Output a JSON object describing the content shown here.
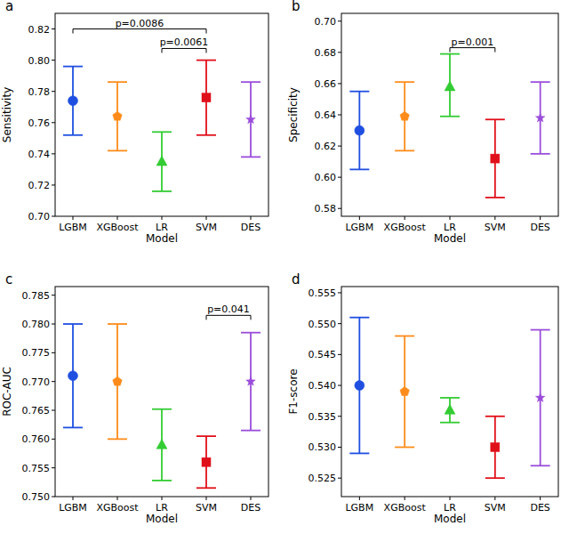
{
  "chart_data": [
    {
      "type": "errorbar",
      "panel": "a",
      "x_label": "Model",
      "y_label": "Sensitivity",
      "categories": [
        "LGBM",
        "XGBoost",
        "LR",
        "SVM",
        "DES"
      ],
      "values": [
        0.774,
        0.764,
        0.735,
        0.776,
        0.762
      ],
      "ci_lower": [
        0.752,
        0.742,
        0.716,
        0.752,
        0.738
      ],
      "ci_upper": [
        0.796,
        0.786,
        0.754,
        0.8,
        0.786
      ],
      "colors": [
        "#1f4fe0",
        "#ff8c1a",
        "#33cc33",
        "#e0101a",
        "#9a4ddb"
      ],
      "markers": [
        "circle",
        "pentagon",
        "triangle",
        "square",
        "star"
      ],
      "ylim": [
        0.7,
        0.83
      ],
      "yticks": [
        {
          "value": 0.7,
          "label": "0.70"
        },
        0.72,
        0.74,
        0.76,
        0.78,
        {
          "value": 0.8,
          "label": "0.80"
        },
        0.82
      ],
      "annotations": [
        {
          "text": "p=0.0086",
          "from": 0,
          "to": 3,
          "y": 0.82
        },
        {
          "text": "p=0.0061",
          "from": 2,
          "to": 3,
          "y": 0.8075
        }
      ]
    },
    {
      "type": "errorbar",
      "panel": "b",
      "x_label": "Model",
      "y_label": "Specificity",
      "categories": [
        "LGBM",
        "XGBoost",
        "LR",
        "SVM",
        "DES"
      ],
      "values": [
        0.63,
        0.639,
        0.658,
        0.612,
        0.638
      ],
      "ci_lower": [
        0.605,
        0.617,
        0.639,
        0.587,
        0.615
      ],
      "ci_upper": [
        0.655,
        0.661,
        0.679,
        0.637,
        0.661
      ],
      "colors": [
        "#1f4fe0",
        "#ff8c1a",
        "#33cc33",
        "#e0101a",
        "#9a4ddb"
      ],
      "markers": [
        "circle",
        "pentagon",
        "triangle",
        "square",
        "star"
      ],
      "ylim": [
        0.575,
        0.705
      ],
      "yticks": [
        0.58,
        {
          "value": 0.6,
          "label": "0.60"
        },
        0.62,
        0.64,
        0.66,
        0.68,
        {
          "value": 0.7,
          "label": "0.70"
        }
      ],
      "annotations": [
        {
          "text": "p=0.001",
          "from": 2,
          "to": 3,
          "y": 0.683
        }
      ]
    },
    {
      "type": "errorbar",
      "panel": "c",
      "x_label": "Model",
      "y_label": "ROC-AUC",
      "categories": [
        "LGBM",
        "XGBoost",
        "LR",
        "SVM",
        "DES"
      ],
      "values": [
        0.771,
        0.77,
        0.759,
        0.756,
        0.77
      ],
      "ci_lower": [
        0.762,
        0.76,
        0.7528,
        0.7515,
        0.7615
      ],
      "ci_upper": [
        0.78,
        0.78,
        0.7652,
        0.7605,
        0.7785
      ],
      "colors": [
        "#1f4fe0",
        "#ff8c1a",
        "#33cc33",
        "#e0101a",
        "#9a4ddb"
      ],
      "markers": [
        "circle",
        "pentagon",
        "triangle",
        "square",
        "star"
      ],
      "ylim": [
        0.75,
        0.7865
      ],
      "yticks": [
        {
          "value": 0.75,
          "label": "0.750"
        },
        0.755,
        {
          "value": 0.76,
          "label": "0.760"
        },
        0.765,
        {
          "value": 0.77,
          "label": "0.770"
        },
        0.775,
        {
          "value": 0.78,
          "label": "0.780"
        },
        0.785
      ],
      "annotations": [
        {
          "text": "p=0.041",
          "from": 3,
          "to": 4,
          "y": 0.7815
        }
      ]
    },
    {
      "type": "errorbar",
      "panel": "d",
      "x_label": "Model",
      "y_label": "F1-score",
      "categories": [
        "LGBM",
        "XGBoost",
        "LR",
        "SVM",
        "DES"
      ],
      "values": [
        0.54,
        0.539,
        0.536,
        0.53,
        0.538
      ],
      "ci_lower": [
        0.529,
        0.53,
        0.534,
        0.525,
        0.527
      ],
      "ci_upper": [
        0.551,
        0.548,
        0.538,
        0.535,
        0.549
      ],
      "colors": [
        "#1f4fe0",
        "#ff8c1a",
        "#33cc33",
        "#e0101a",
        "#9a4ddb"
      ],
      "markers": [
        "circle",
        "pentagon",
        "triangle",
        "square",
        "star"
      ],
      "ylim": [
        0.522,
        0.556
      ],
      "yticks": [
        0.525,
        {
          "value": 0.53,
          "label": "0.530"
        },
        0.535,
        {
          "value": 0.54,
          "label": "0.540"
        },
        0.545,
        {
          "value": 0.55,
          "label": "0.550"
        },
        0.555
      ]
    }
  ]
}
